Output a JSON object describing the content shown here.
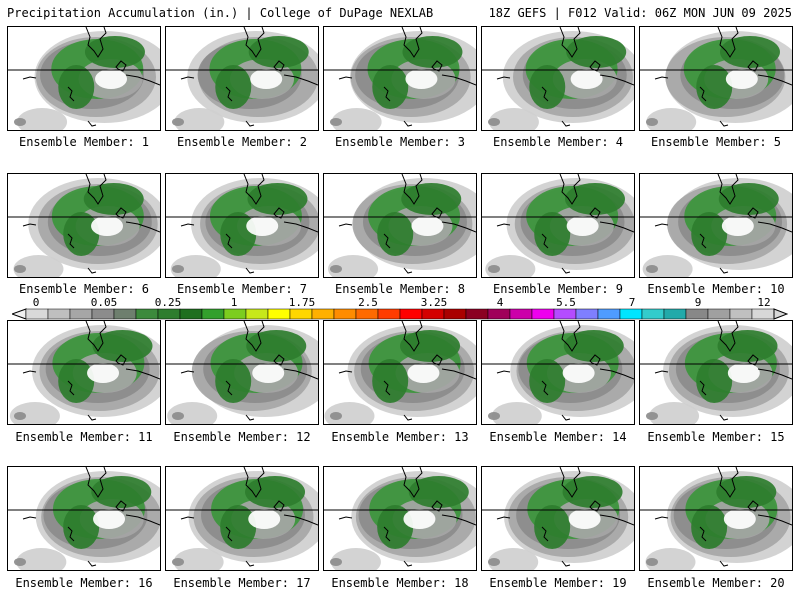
{
  "header": {
    "left": "Precipitation Accumulation (in.) | College of DuPage NEXLAB",
    "right": "18Z GEFS | F012 Valid: 06Z MON JUN 09 2025"
  },
  "panels": [
    {
      "label": "Ensemble Member: 1"
    },
    {
      "label": "Ensemble Member: 2"
    },
    {
      "label": "Ensemble Member: 3"
    },
    {
      "label": "Ensemble Member: 4"
    },
    {
      "label": "Ensemble Member: 5"
    },
    {
      "label": "Ensemble Member: 6"
    },
    {
      "label": "Ensemble Member: 7"
    },
    {
      "label": "Ensemble Member: 8"
    },
    {
      "label": "Ensemble Member: 9"
    },
    {
      "label": "Ensemble Member: 10"
    },
    {
      "label": "Ensemble Member: 11"
    },
    {
      "label": "Ensemble Member: 12"
    },
    {
      "label": "Ensemble Member: 13"
    },
    {
      "label": "Ensemble Member: 14"
    },
    {
      "label": "Ensemble Member: 15"
    },
    {
      "label": "Ensemble Member: 16"
    },
    {
      "label": "Ensemble Member: 17"
    },
    {
      "label": "Ensemble Member: 18"
    },
    {
      "label": "Ensemble Member: 19"
    },
    {
      "label": "Ensemble Member: 20"
    }
  ],
  "legend": {
    "tick_labels": [
      "0",
      "0.05",
      "0.25",
      "1",
      "1.75",
      "2.5",
      "3.25",
      "4",
      "5.5",
      "7",
      "9",
      "12"
    ],
    "colors": [
      "#d9d9d9",
      "#bfbfbf",
      "#a6a6a6",
      "#8c8c8c",
      "#6e7f6e",
      "#3c8a3c",
      "#2e7d2e",
      "#1f6f1f",
      "#33a02c",
      "#7ccd1f",
      "#c7e81a",
      "#ffff00",
      "#ffd700",
      "#ffb000",
      "#ff8c00",
      "#ff6a00",
      "#ff3c00",
      "#ff0000",
      "#d40000",
      "#aa0000",
      "#8b0022",
      "#a0005a",
      "#cc00aa",
      "#ee00ee",
      "#b44cff",
      "#7f7fff",
      "#4f9cff",
      "#00e5ff",
      "#33cccc",
      "#22aaaa",
      "#888888",
      "#a0a0a0",
      "#c0c0c0",
      "#d8d8d8"
    ]
  },
  "colors": {
    "green_dark": "#2e7d2e",
    "green_mid": "#3c963c",
    "gray_dark": "#8c8c8c",
    "gray_mid": "#a6a6a6",
    "gray_light": "#cfcfcf"
  }
}
